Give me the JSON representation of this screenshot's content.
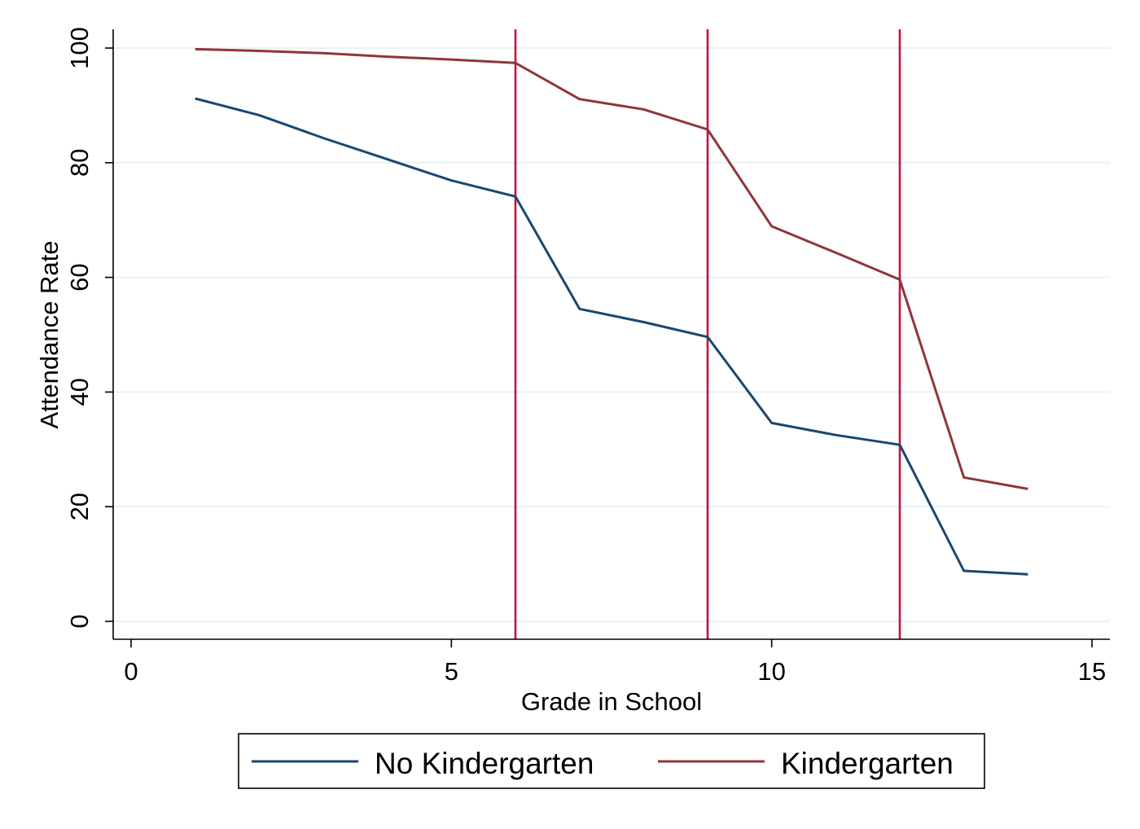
{
  "chart_data": {
    "type": "line",
    "xlabel": "Grade in School",
    "ylabel": "Attendance Rate",
    "xlim": [
      0,
      15
    ],
    "ylim": [
      0,
      100
    ],
    "xticks": [
      0,
      5,
      10,
      15
    ],
    "yticks": [
      0,
      20,
      40,
      60,
      80,
      100
    ],
    "grid": "horizontal",
    "legend_position": "bottom",
    "vertical_lines": [
      6,
      9,
      12
    ],
    "vertical_line_color": "#c0143c",
    "x": [
      1,
      2,
      3,
      4,
      5,
      6,
      7,
      8,
      9,
      10,
      11,
      12,
      13,
      14
    ],
    "series": [
      {
        "name": "No Kindergarten",
        "color": "#1a476f",
        "values": [
          91.2,
          88.3,
          84.3,
          80.6,
          76.9,
          74.1,
          54.5,
          52.2,
          49.6,
          34.6,
          32.5,
          30.8,
          8.8,
          8.2
        ]
      },
      {
        "name": "Kindergarten",
        "color": "#90353b",
        "values": [
          99.8,
          99.5,
          99.1,
          98.5,
          98.0,
          97.4,
          91.1,
          89.3,
          85.8,
          68.9,
          64.3,
          59.6,
          25.1,
          23.1
        ]
      }
    ]
  }
}
